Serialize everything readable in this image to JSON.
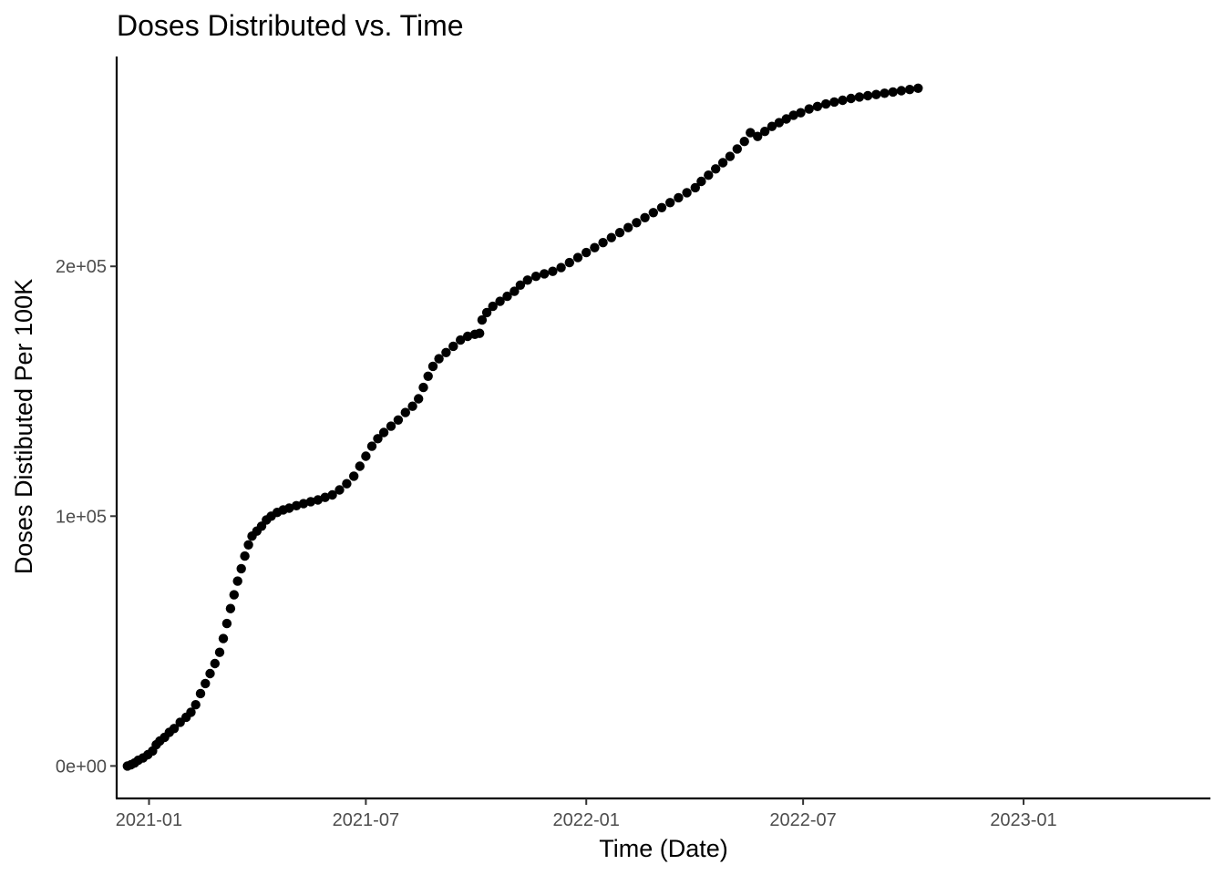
{
  "chart_data": {
    "type": "scatter",
    "title": "Doses Distributed vs. Time",
    "xlabel": "Time (Date)",
    "ylabel": "Doses Distibuted Per 100K",
    "x_ticks": [
      "2021-01",
      "2021-07",
      "2022-01",
      "2022-07",
      "2023-01"
    ],
    "y_ticks": [
      {
        "value": 0,
        "label": "0e+00"
      },
      {
        "value": 100000,
        "label": "1e+05"
      },
      {
        "value": 200000,
        "label": "2e+05"
      }
    ],
    "xlim": [
      "2020-12-05",
      "2023-06-06"
    ],
    "ylim": [
      -13000,
      284000
    ],
    "grid": false,
    "point_color": "#000000",
    "points": [
      [
        "2020-12-14",
        0
      ],
      [
        "2020-12-17",
        500
      ],
      [
        "2020-12-20",
        1200
      ],
      [
        "2020-12-23",
        2300
      ],
      [
        "2020-12-27",
        3200
      ],
      [
        "2020-12-31",
        4500
      ],
      [
        "2021-01-04",
        6000
      ],
      [
        "2021-01-07",
        8500
      ],
      [
        "2021-01-10",
        10000
      ],
      [
        "2021-01-14",
        11500
      ],
      [
        "2021-01-18",
        13500
      ],
      [
        "2021-01-22",
        15000
      ],
      [
        "2021-01-27",
        17500
      ],
      [
        "2021-02-01",
        19500
      ],
      [
        "2021-02-05",
        21500
      ],
      [
        "2021-02-09",
        24500
      ],
      [
        "2021-02-13",
        29000
      ],
      [
        "2021-02-17",
        33000
      ],
      [
        "2021-02-21",
        37000
      ],
      [
        "2021-02-25",
        41000
      ],
      [
        "2021-03-01",
        45500
      ],
      [
        "2021-03-04",
        51000
      ],
      [
        "2021-03-07",
        57000
      ],
      [
        "2021-03-10",
        63000
      ],
      [
        "2021-03-13",
        68500
      ],
      [
        "2021-03-16",
        74000
      ],
      [
        "2021-03-19",
        79000
      ],
      [
        "2021-03-22",
        84000
      ],
      [
        "2021-03-25",
        88500
      ],
      [
        "2021-03-28",
        92000
      ],
      [
        "2021-04-01",
        94000
      ],
      [
        "2021-04-05",
        96000
      ],
      [
        "2021-04-09",
        98500
      ],
      [
        "2021-04-13",
        100000
      ],
      [
        "2021-04-18",
        101500
      ],
      [
        "2021-04-23",
        102500
      ],
      [
        "2021-04-28",
        103200
      ],
      [
        "2021-05-04",
        104200
      ],
      [
        "2021-05-10",
        105000
      ],
      [
        "2021-05-16",
        105800
      ],
      [
        "2021-05-22",
        106500
      ],
      [
        "2021-05-28",
        107500
      ],
      [
        "2021-06-03",
        108500
      ],
      [
        "2021-06-09",
        110500
      ],
      [
        "2021-06-15",
        113000
      ],
      [
        "2021-06-21",
        116000
      ],
      [
        "2021-06-26",
        120000
      ],
      [
        "2021-07-01",
        124000
      ],
      [
        "2021-07-06",
        128000
      ],
      [
        "2021-07-11",
        131000
      ],
      [
        "2021-07-16",
        133500
      ],
      [
        "2021-07-22",
        136000
      ],
      [
        "2021-07-28",
        138500
      ],
      [
        "2021-08-03",
        141500
      ],
      [
        "2021-08-09",
        144000
      ],
      [
        "2021-08-14",
        147000
      ],
      [
        "2021-08-18",
        151500
      ],
      [
        "2021-08-22",
        156000
      ],
      [
        "2021-08-26",
        160000
      ],
      [
        "2021-08-31",
        163000
      ],
      [
        "2021-09-06",
        165500
      ],
      [
        "2021-09-12",
        168000
      ],
      [
        "2021-09-18",
        170500
      ],
      [
        "2021-09-24",
        172000
      ],
      [
        "2021-09-30",
        172800
      ],
      [
        "2021-10-04",
        173200
      ],
      [
        "2021-10-06",
        178500
      ],
      [
        "2021-10-10",
        181500
      ],
      [
        "2021-10-15",
        184000
      ],
      [
        "2021-10-21",
        186000
      ],
      [
        "2021-10-27",
        188000
      ],
      [
        "2021-11-02",
        190000
      ],
      [
        "2021-11-07",
        192500
      ],
      [
        "2021-11-13",
        194500
      ],
      [
        "2021-11-20",
        196000
      ],
      [
        "2021-11-27",
        197000
      ],
      [
        "2021-12-04",
        198000
      ],
      [
        "2021-12-11",
        199500
      ],
      [
        "2021-12-18",
        201500
      ],
      [
        "2021-12-25",
        203500
      ],
      [
        "2022-01-01",
        205500
      ],
      [
        "2022-01-08",
        207500
      ],
      [
        "2022-01-15",
        209500
      ],
      [
        "2022-01-22",
        211500
      ],
      [
        "2022-01-29",
        213500
      ],
      [
        "2022-02-05",
        215500
      ],
      [
        "2022-02-12",
        217500
      ],
      [
        "2022-02-19",
        219500
      ],
      [
        "2022-02-26",
        221500
      ],
      [
        "2022-03-05",
        223500
      ],
      [
        "2022-03-12",
        225500
      ],
      [
        "2022-03-19",
        227500
      ],
      [
        "2022-03-26",
        229500
      ],
      [
        "2022-04-02",
        231500
      ],
      [
        "2022-04-07",
        234000
      ],
      [
        "2022-04-13",
        236500
      ],
      [
        "2022-04-19",
        239000
      ],
      [
        "2022-04-25",
        241500
      ],
      [
        "2022-05-01",
        244000
      ],
      [
        "2022-05-07",
        247000
      ],
      [
        "2022-05-13",
        250000
      ],
      [
        "2022-05-18",
        253500
      ],
      [
        "2022-05-24",
        252000
      ],
      [
        "2022-05-30",
        254000
      ],
      [
        "2022-06-05",
        256000
      ],
      [
        "2022-06-11",
        257500
      ],
      [
        "2022-06-17",
        259000
      ],
      [
        "2022-06-23",
        260500
      ],
      [
        "2022-06-29",
        261500
      ],
      [
        "2022-07-06",
        263000
      ],
      [
        "2022-07-13",
        264000
      ],
      [
        "2022-07-20",
        265000
      ],
      [
        "2022-07-27",
        265800
      ],
      [
        "2022-08-03",
        266500
      ],
      [
        "2022-08-10",
        267200
      ],
      [
        "2022-08-17",
        267800
      ],
      [
        "2022-08-24",
        268300
      ],
      [
        "2022-08-31",
        268800
      ],
      [
        "2022-09-07",
        269300
      ],
      [
        "2022-09-14",
        269800
      ],
      [
        "2022-09-21",
        270300
      ],
      [
        "2022-09-28",
        270800
      ],
      [
        "2022-10-05",
        271300
      ]
    ]
  }
}
